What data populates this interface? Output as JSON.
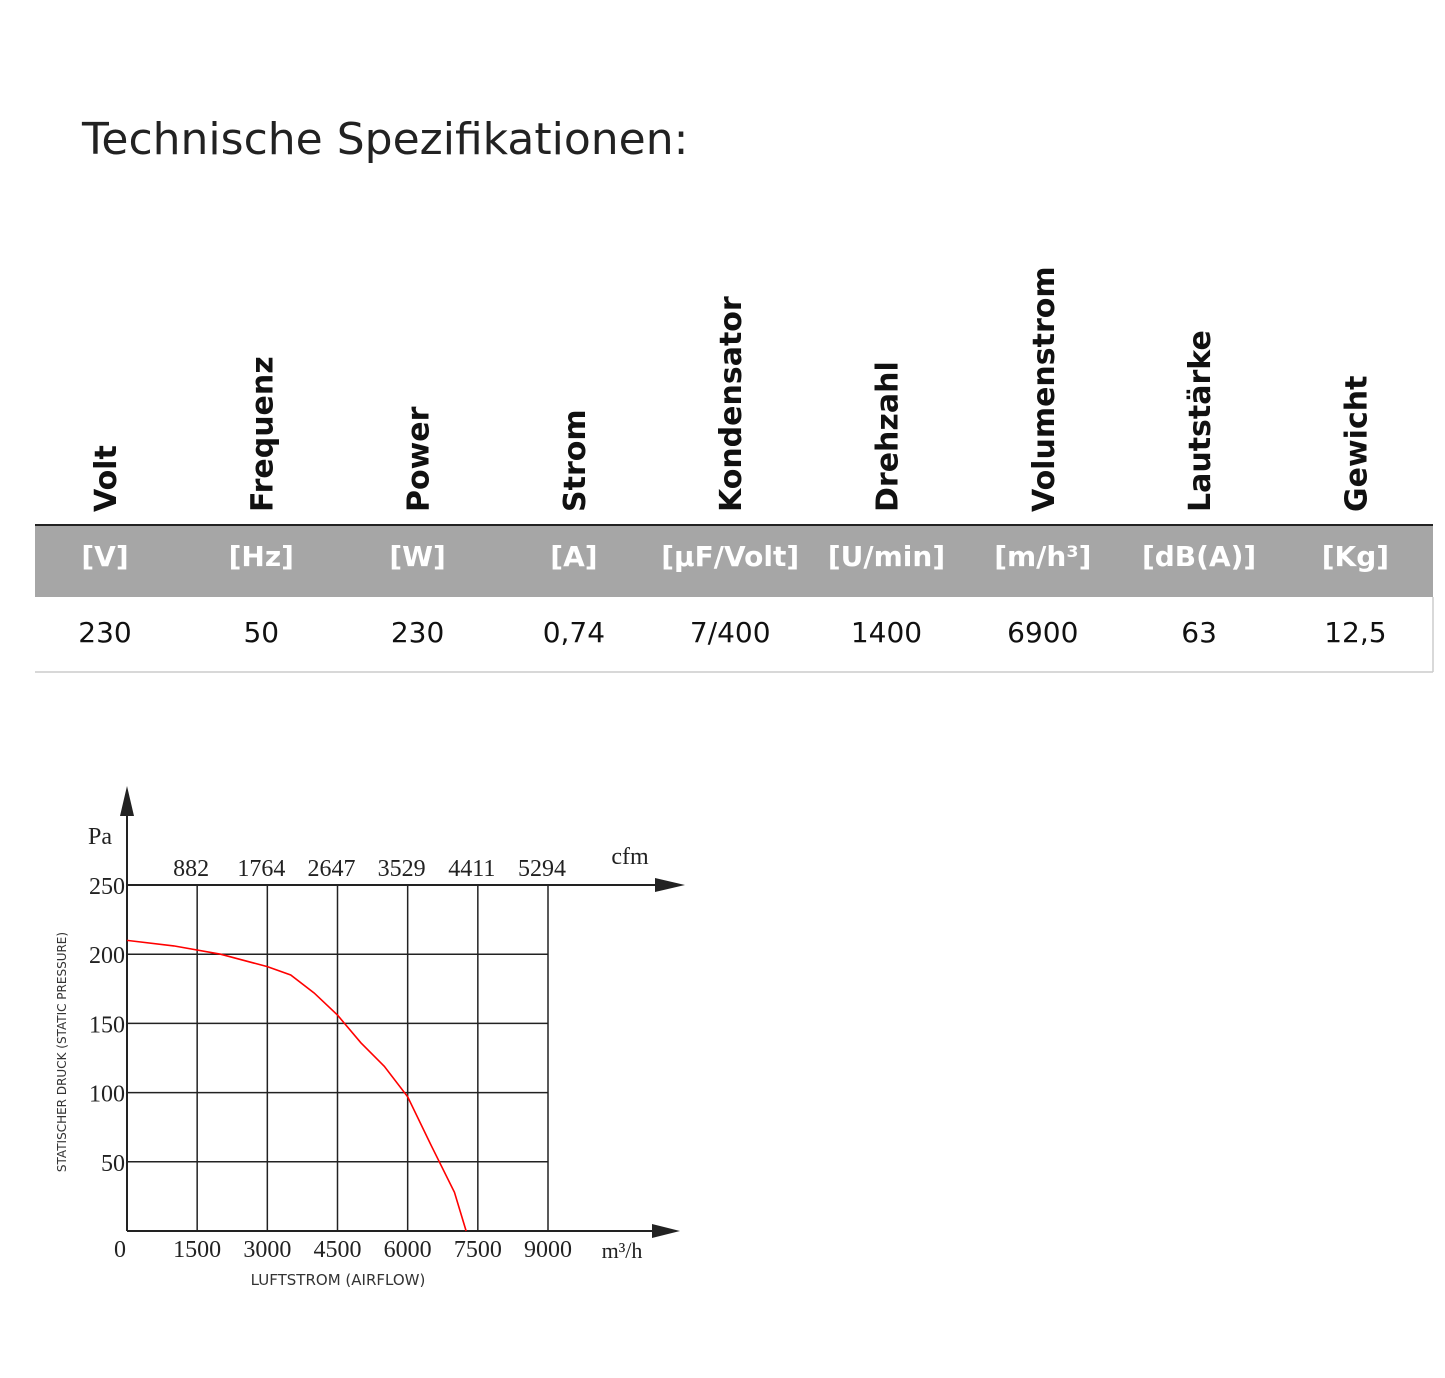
{
  "title": "Technische Spezifikationen:",
  "table": {
    "headers": [
      "Volt",
      "Frequenz",
      "Power",
      "Strom",
      "Kondensator",
      "Drehzahl",
      "Volumenstrom",
      "Lautstärke",
      "Gewicht"
    ],
    "units": [
      "[V]",
      "[Hz]",
      "[W]",
      "[A]",
      "[µF/Volt]",
      "[U/min]",
      "[m/h³]",
      "[dB(A)]",
      "[Kg]"
    ],
    "values": [
      "230",
      "50",
      "230",
      "0,74",
      "7/400",
      "1400",
      "6900",
      "63",
      "12,5"
    ]
  },
  "chart_data": {
    "type": "line",
    "y_unit": "Pa",
    "ylabel": "STATISCHER DRUCK (STATIC PRESSURE)",
    "x_unit": "m³/h",
    "xlabel": "LUFTSTROM (AIRFLOW)",
    "x2_unit": "cfm",
    "xlim": [
      0,
      9000
    ],
    "xticks": [
      0,
      1500,
      3000,
      4500,
      6000,
      7500,
      9000
    ],
    "x2ticks": [
      {
        "value": 1500,
        "label": "882"
      },
      {
        "value": 3000,
        "label": "1764"
      },
      {
        "value": 4500,
        "label": "2647"
      },
      {
        "value": 6000,
        "label": "3529"
      },
      {
        "value": 7500,
        "label": "4411"
      },
      {
        "value": 9000,
        "label": "5294"
      }
    ],
    "ylim": [
      0,
      250
    ],
    "yticks": [
      50,
      100,
      150,
      200,
      250
    ],
    "grid": true,
    "x": [
      0,
      1000,
      2000,
      3000,
      3500,
      4000,
      4500,
      5000,
      5500,
      6000,
      6500,
      7000,
      7250
    ],
    "series": [
      {
        "color": "#ff0000",
        "values": [
          210,
          206,
          200,
          191,
          185,
          172,
          156,
          136,
          119,
          97,
          62,
          28,
          0
        ]
      }
    ]
  }
}
